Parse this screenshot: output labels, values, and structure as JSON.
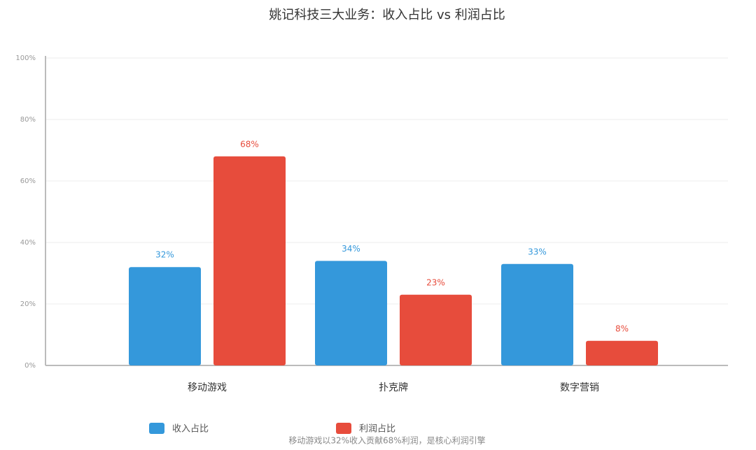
{
  "chart_data": {
    "type": "bar",
    "title": "姚记科技三大业务：收入占比 vs 利润占比",
    "categories": [
      "移动游戏",
      "扑克牌",
      "数字营销"
    ],
    "series": [
      {
        "name": "收入占比",
        "color": "#3498db",
        "values": [
          32,
          34,
          33
        ],
        "value_labels": [
          "32%",
          "34%",
          "33%"
        ]
      },
      {
        "name": "利润占比",
        "color": "#e74c3c",
        "values": [
          68,
          23,
          8
        ],
        "value_labels": [
          "68%",
          "23%",
          "8%"
        ]
      }
    ],
    "ylim": [
      0,
      100
    ],
    "yticks": [
      {
        "value": 0,
        "label": "0%"
      },
      {
        "value": 20,
        "label": "20%"
      },
      {
        "value": 40,
        "label": "40%"
      },
      {
        "value": 60,
        "label": "60%"
      },
      {
        "value": 80,
        "label": "80%"
      },
      {
        "value": 100,
        "label": "100%"
      }
    ],
    "grid": true,
    "annotation": "移动游戏以32%收入贡献68%利润，是核心利润引擎"
  }
}
